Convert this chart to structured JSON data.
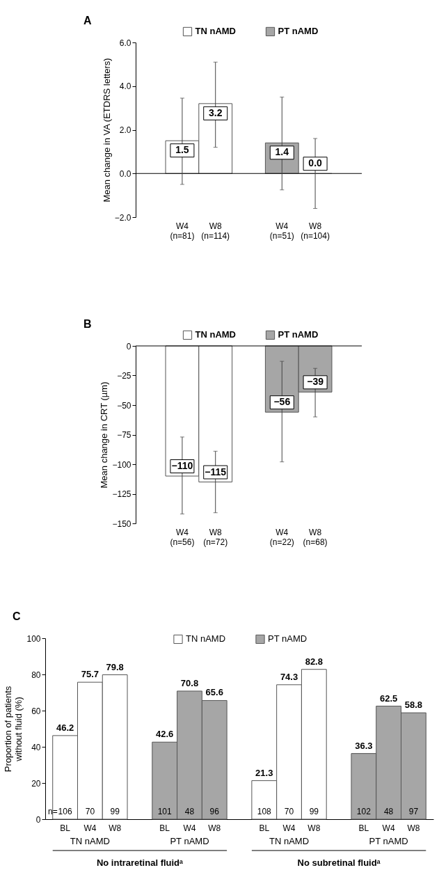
{
  "chart_data": [
    {
      "type": "bar",
      "title": "A",
      "ylabel": "Mean change in VA (ETDRS letters)",
      "categories": [
        "W4\n(n=81)",
        "W8\n(n=114)",
        "W4\n(n=51)",
        "W8\n(n=104)"
      ],
      "series": [
        {
          "name": "TN nAMD",
          "color": "#ffffff",
          "values": [
            1.5,
            3.2,
            null,
            null
          ],
          "errors": [
            [
              -0.5,
              3.45
            ],
            [
              1.2,
              5.1
            ],
            null,
            null
          ],
          "value_labels": [
            "1.5",
            "3.2",
            null,
            null
          ]
        },
        {
          "name": "PT nAMD",
          "color": "#a6a6a6",
          "values": [
            null,
            null,
            1.4,
            0.0
          ],
          "errors": [
            null,
            null,
            [
              -0.75,
              3.5
            ],
            [
              -1.6,
              1.6
            ]
          ],
          "value_labels": [
            null,
            null,
            "1.4",
            "0.0"
          ]
        }
      ],
      "ylim": [
        -2,
        6
      ],
      "yticks": [
        {
          "value": -2,
          "label": "−2.0"
        },
        {
          "value": 0,
          "label": "0.0"
        },
        {
          "value": 2,
          "label": "2.0"
        },
        {
          "value": 4,
          "label": "4.0"
        },
        {
          "value": 6,
          "label": "6.0"
        }
      ],
      "ref_lines": [
        {
          "axis": "y",
          "value": 0
        }
      ],
      "legend": "top"
    },
    {
      "type": "bar",
      "title": "B",
      "ylabel": "Mean change in CRT (µm)",
      "categories": [
        "W4\n(n=56)",
        "W8\n(n=72)",
        "W4\n(n=22)",
        "W8\n(n=68)"
      ],
      "series": [
        {
          "name": "TN nAMD",
          "color": "#ffffff",
          "values": [
            -110,
            -115,
            null,
            null
          ],
          "errors": [
            [
              -142,
              -77
            ],
            [
              -141,
              -89
            ],
            null,
            null
          ],
          "value_labels": [
            "−110",
            "−115",
            null,
            null
          ]
        },
        {
          "name": "PT nAMD",
          "color": "#a6a6a6",
          "values": [
            null,
            null,
            -56,
            -39
          ],
          "errors": [
            null,
            null,
            [
              -98,
              -13
            ],
            [
              -60,
              -19
            ]
          ],
          "value_labels": [
            null,
            null,
            "−56",
            "−39"
          ]
        }
      ],
      "ylim": [
        -150,
        0
      ],
      "yticks": [
        {
          "value": -150,
          "label": "−150"
        },
        {
          "value": -125,
          "label": "−125"
        },
        {
          "value": -100,
          "label": "−100"
        },
        {
          "value": -75,
          "label": "−75"
        },
        {
          "value": -50,
          "label": "−50"
        },
        {
          "value": -25,
          "label": "−25"
        },
        0
      ],
      "ref_lines": [
        {
          "axis": "y",
          "value": 0
        }
      ],
      "legend": "top"
    },
    {
      "type": "bar",
      "title": "C",
      "ylabel": "Proportion of patients\nwithout fluid (%)",
      "categories": [
        "BL",
        "W4",
        "W8",
        "BL",
        "W4",
        "W8",
        "BL",
        "W4",
        "W8",
        "BL",
        "W4",
        "W8"
      ],
      "series": [
        {
          "name": "TN nAMD",
          "color": "#ffffff",
          "values": [
            46.2,
            75.7,
            79.8,
            null,
            null,
            null,
            21.3,
            74.3,
            82.8,
            null,
            null,
            null
          ]
        },
        {
          "name": "PT nAMD",
          "color": "#a6a6a6",
          "values": [
            null,
            null,
            null,
            42.6,
            70.8,
            65.6,
            null,
            null,
            null,
            36.3,
            62.5,
            58.8
          ]
        }
      ],
      "ylim": [
        0,
        100
      ],
      "yticks": [
        0,
        20,
        40,
        60,
        80,
        100
      ],
      "data_labels": true,
      "legend": "top",
      "annotations": [
        "n=",
        "106",
        "70",
        "99",
        "101",
        "48",
        "96",
        "108",
        "70",
        "99",
        "102",
        "48",
        "97",
        "TN nAMD",
        "PT nAMD",
        "TN nAMD",
        "PT nAMD",
        "No intraretinal fluidᵃ",
        "No subretinal fluidᵃ"
      ]
    }
  ]
}
